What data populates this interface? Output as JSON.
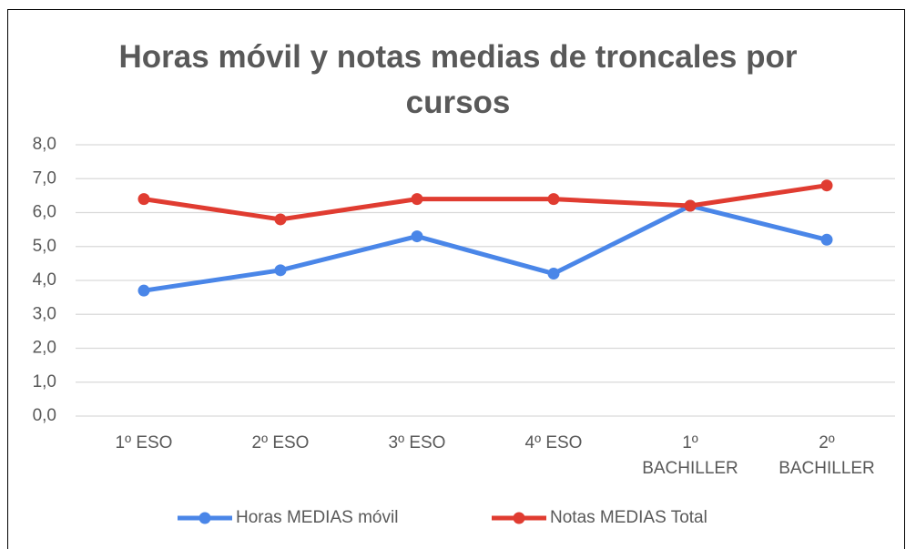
{
  "chart_data": {
    "type": "line",
    "title": "Horas móvil y notas medias de troncales por cursos",
    "categories": [
      "1º ESO",
      "2º ESO",
      "3º ESO",
      "4º ESO",
      "1º BACHILLER",
      "2º BACHILLER"
    ],
    "series": [
      {
        "name": "Horas MEDIAS móvil",
        "color": "#4a86e8",
        "values": [
          3.7,
          4.3,
          5.3,
          4.2,
          6.2,
          5.2
        ]
      },
      {
        "name": "Notas MEDIAS Total",
        "color": "#e03c31",
        "values": [
          6.4,
          5.8,
          6.4,
          6.4,
          6.2,
          6.8
        ]
      }
    ],
    "ylim": [
      0,
      8
    ],
    "yticks": [
      {
        "value": 0,
        "label": "0,0"
      },
      {
        "value": 1,
        "label": "1,0"
      },
      {
        "value": 2,
        "label": "2,0"
      },
      {
        "value": 3,
        "label": "3,0"
      },
      {
        "value": 4,
        "label": "4,0"
      },
      {
        "value": 5,
        "label": "5,0"
      },
      {
        "value": 6,
        "label": "6,0"
      },
      {
        "value": 7,
        "label": "7,0"
      },
      {
        "value": 8,
        "label": "8,0"
      }
    ],
    "grid": true,
    "legend": "bottom"
  }
}
